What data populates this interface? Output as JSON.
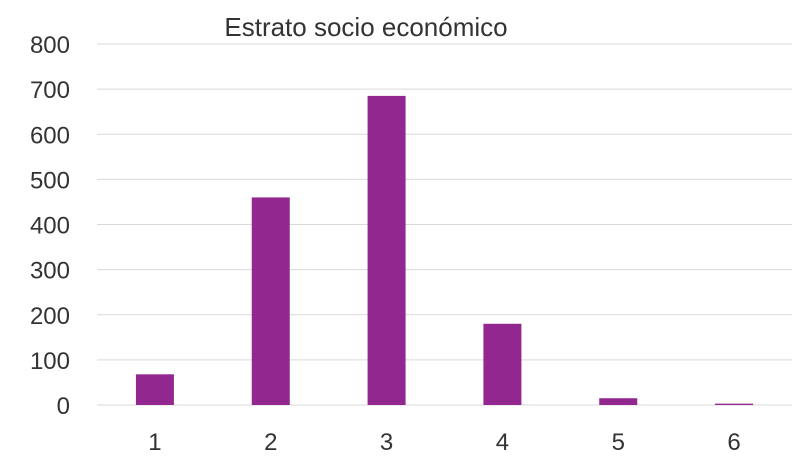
{
  "chart_data": {
    "type": "bar",
    "title": "Estrato socio económico",
    "categories": [
      "1",
      "2",
      "3",
      "4",
      "5",
      "6"
    ],
    "values": [
      68,
      460,
      685,
      180,
      15,
      3
    ],
    "ylim": [
      0,
      800
    ],
    "yticks": [
      "0",
      "100",
      "200",
      "300",
      "400",
      "500",
      "600",
      "700",
      "800"
    ],
    "grid": true,
    "bar_color": "#92278f",
    "grid_color": "#d9d9d9"
  }
}
